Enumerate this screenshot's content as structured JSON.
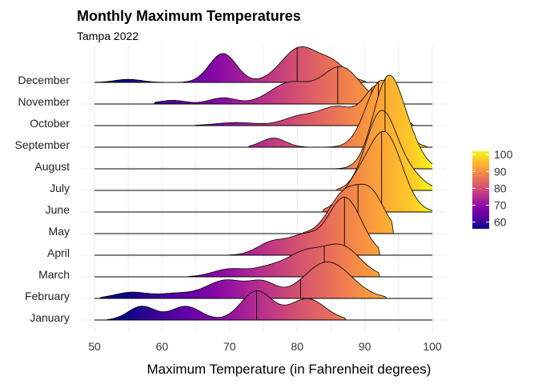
{
  "chart_data": {
    "type": "ridgeline",
    "title": "Monthly Maximum Temperatures",
    "subtitle": "Tampa 2022",
    "xlabel": "Maximum Temperature (in Fahrenheit degrees)",
    "ylabel": "",
    "xlim": [
      50,
      100
    ],
    "xticks": [
      50,
      60,
      70,
      80,
      90,
      100
    ],
    "color_scale": {
      "name": "plasma",
      "range": [
        55,
        102
      ],
      "ticks": [
        60,
        70,
        80,
        90,
        100
      ]
    },
    "series": [
      {
        "name": "January",
        "median": 74,
        "range": [
          52,
          87
        ],
        "peaks": [
          [
            57,
            0.45,
            2.0
          ],
          [
            63.5,
            0.45,
            2.2
          ],
          [
            74,
            0.95,
            2.3
          ],
          [
            81.5,
            0.7,
            2.6
          ]
        ]
      },
      {
        "name": "February",
        "median": 80.5,
        "range": [
          51,
          93
        ],
        "peaks": [
          [
            55.5,
            0.2,
            2.5
          ],
          [
            62,
            0.15,
            2.5
          ],
          [
            69.5,
            0.6,
            3.0
          ],
          [
            75,
            0.45,
            2.0
          ],
          [
            84.5,
            1.2,
            3.5
          ]
        ]
      },
      {
        "name": "March",
        "median": 84,
        "range": [
          64,
          92
        ],
        "peaks": [
          [
            70,
            0.25,
            2.5
          ],
          [
            76,
            0.3,
            2.5
          ],
          [
            81,
            0.7,
            2.5
          ],
          [
            86.5,
            1.0,
            2.8
          ]
        ]
      },
      {
        "name": "April",
        "median": 87,
        "range": [
          70,
          92
        ],
        "peaks": [
          [
            76.5,
            0.45,
            2.3
          ],
          [
            81,
            0.55,
            2.0
          ],
          [
            87,
            1.9,
            2.5
          ]
        ]
      },
      {
        "name": "May",
        "median": 89,
        "range": [
          81,
          94
        ],
        "peaks": [
          [
            87,
            1.3,
            2.3
          ],
          [
            91,
            1.2,
            2.0
          ]
        ]
      },
      {
        "name": "June",
        "median": 92.5,
        "range": [
          84,
          100
        ],
        "peaks": [
          [
            88.5,
            0.75,
            2.2
          ],
          [
            93,
            2.55,
            2.5
          ]
        ]
      },
      {
        "name": "July",
        "median": 93,
        "range": [
          86,
          100
        ],
        "peaks": [
          [
            92.5,
            2.6,
            2.3
          ],
          [
            97,
            0.4,
            2.0
          ]
        ]
      },
      {
        "name": "August",
        "median": 93,
        "range": [
          85,
          100
        ],
        "peaks": [
          [
            93.5,
            3.0,
            2.2
          ],
          [
            97,
            0.5,
            1.8
          ]
        ]
      },
      {
        "name": "September",
        "median": 92,
        "range": [
          73,
          99
        ],
        "peaks": [
          [
            76.5,
            0.3,
            1.8
          ],
          [
            92.5,
            2.2,
            2.3
          ]
        ]
      },
      {
        "name": "October",
        "median": 91,
        "range": [
          65,
          97
        ],
        "peaks": [
          [
            71,
            0.1,
            3.0
          ],
          [
            80.5,
            0.3,
            2.5
          ],
          [
            86,
            0.6,
            2.5
          ],
          [
            92,
            1.3,
            2.0
          ]
        ]
      },
      {
        "name": "November",
        "median": 86,
        "range": [
          59,
          94
        ],
        "peaks": [
          [
            61.5,
            0.12,
            2.0
          ],
          [
            69,
            0.2,
            2.0
          ],
          [
            79,
            0.7,
            3.0
          ],
          [
            86.5,
            1.2,
            2.8
          ]
        ]
      },
      {
        "name": "December",
        "median": 80,
        "range": [
          50,
          90
        ],
        "peaks": [
          [
            55,
            0.1,
            2.0
          ],
          [
            69,
            0.95,
            2.0
          ],
          [
            80.5,
            1.15,
            2.8
          ],
          [
            85.5,
            0.5,
            2.0
          ]
        ]
      }
    ]
  }
}
